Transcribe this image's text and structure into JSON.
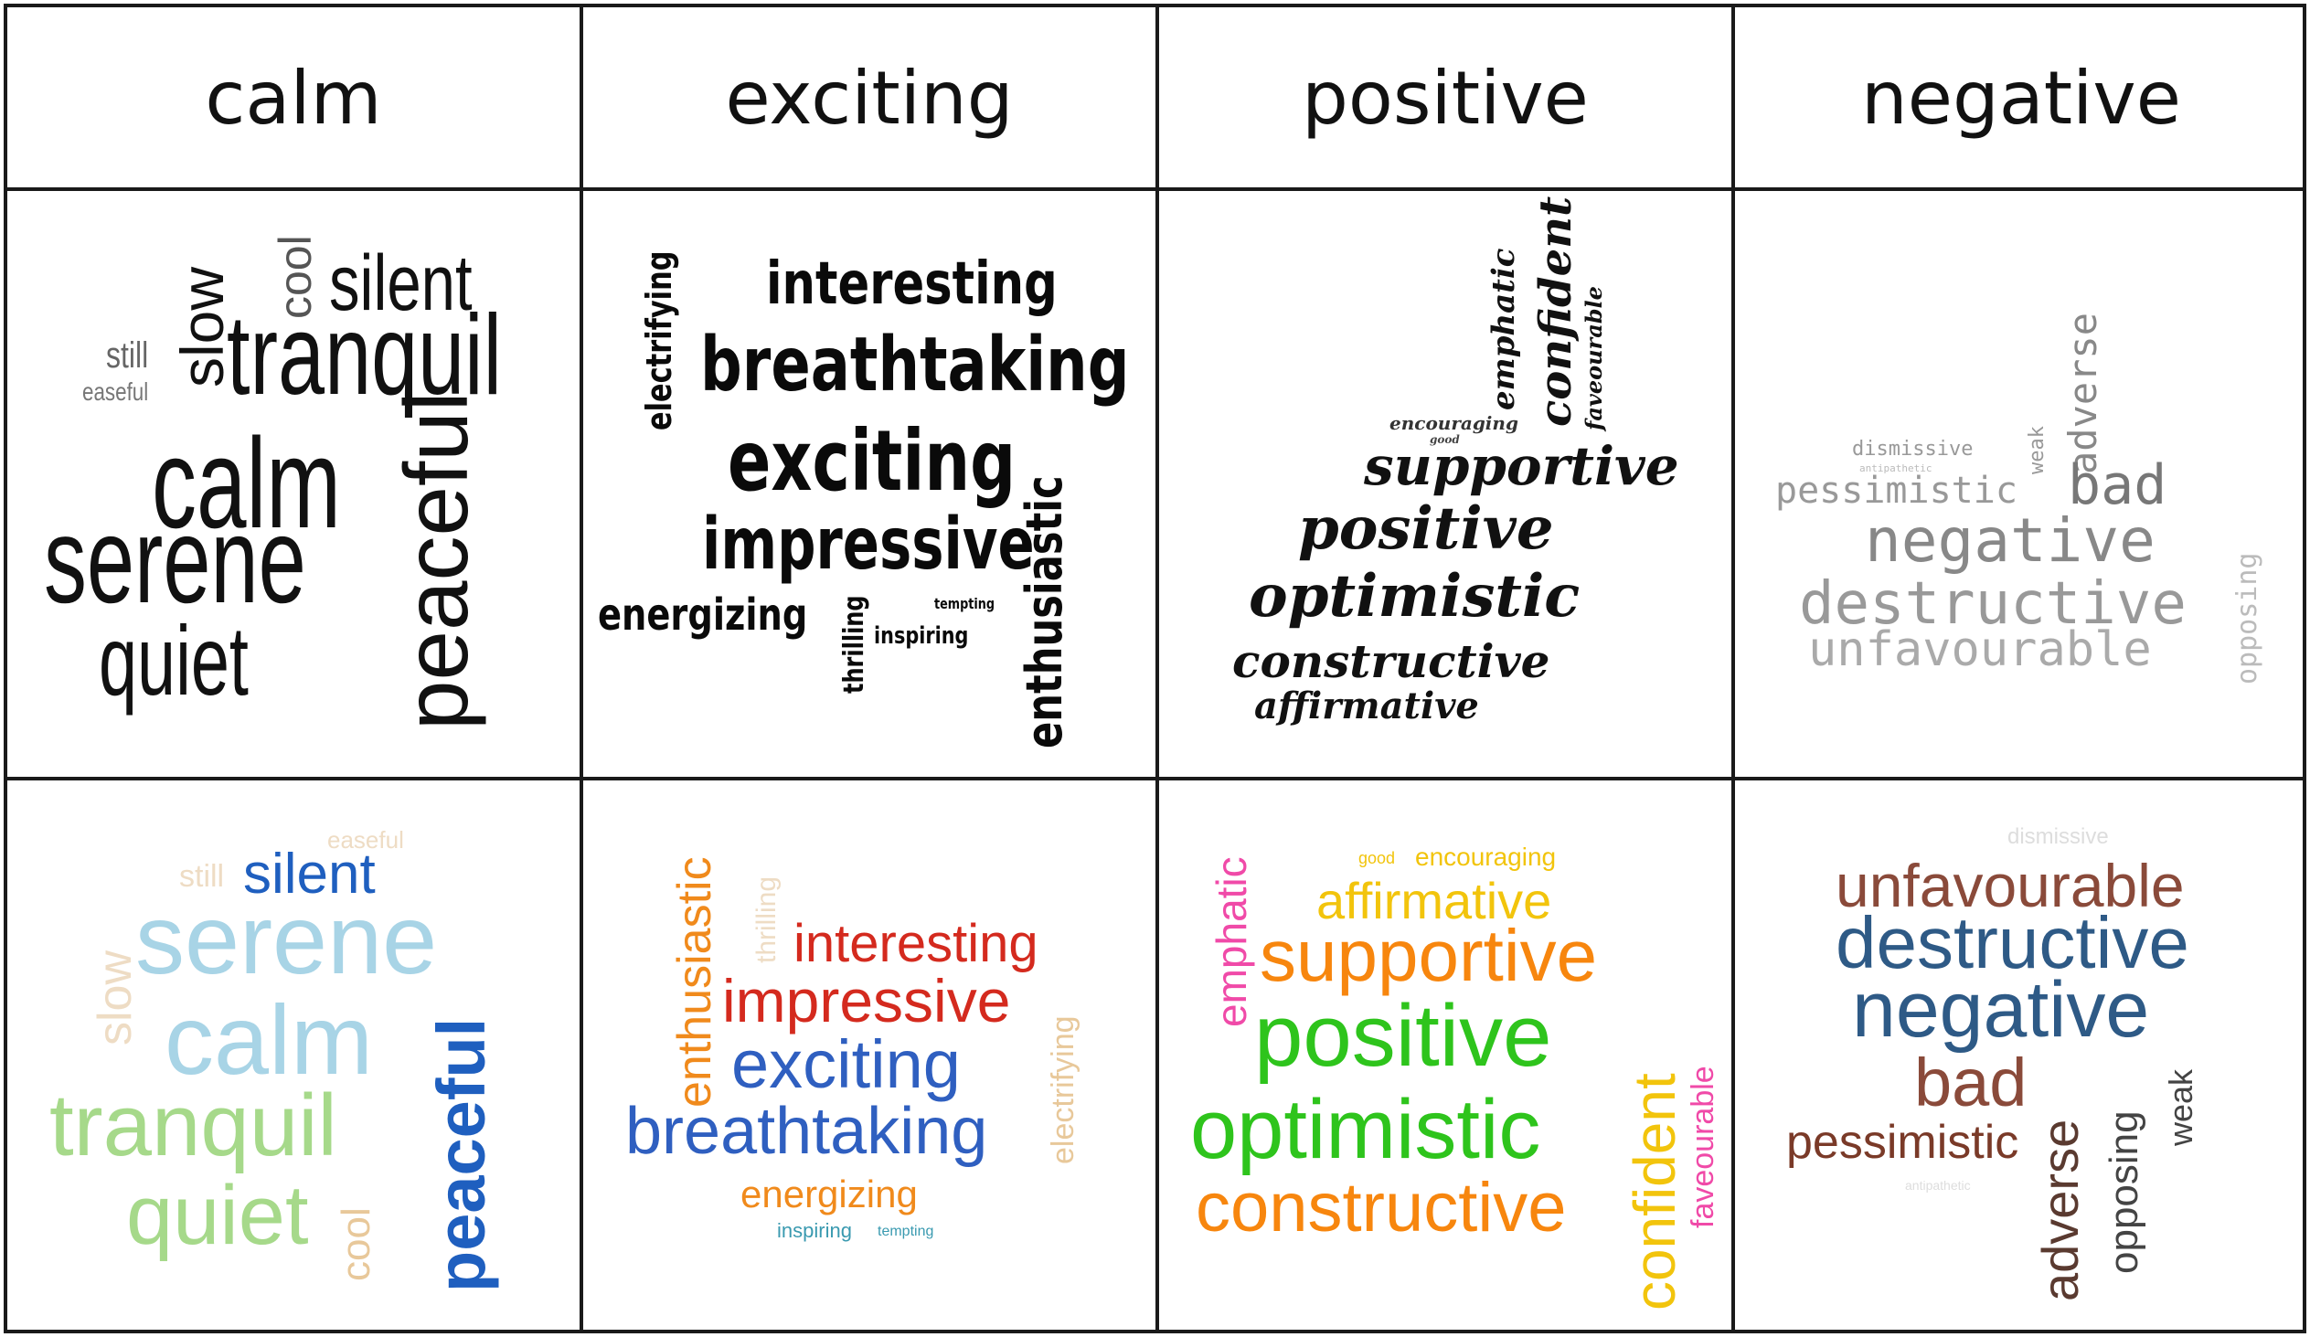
{
  "headers": [
    "calm",
    "exciting",
    "positive",
    "negative"
  ],
  "bw": {
    "calm": [
      "silent",
      "cool",
      "slow",
      "still",
      "easeful",
      "tranquil",
      "calm",
      "serene",
      "quiet",
      "peaceful"
    ],
    "exciting": [
      "electrifying",
      "interesting",
      "breathtaking",
      "exciting",
      "impressive",
      "enthusiastic",
      "energizing",
      "thrilling",
      "inspiring",
      "tempting"
    ],
    "positive": [
      "emphatic",
      "confident",
      "faveourable",
      "encouraging",
      "good",
      "supportive",
      "positive",
      "optimistic",
      "constructive",
      "affirmative"
    ],
    "negative": [
      "adverse",
      "weak",
      "dismissive",
      "antipathetic",
      "pessimistic",
      "bad",
      "negative",
      "destructive",
      "unfavourable",
      "opposing"
    ]
  },
  "color": {
    "calm": [
      "easeful",
      "still",
      "silent",
      "serene",
      "slow",
      "calm",
      "tranquil",
      "peaceful",
      "quiet",
      "cool"
    ],
    "exciting": [
      "enthusiastic",
      "thrilling",
      "interesting",
      "impressive",
      "electrifying",
      "exciting",
      "breathtaking",
      "energizing",
      "inspiring",
      "tempting"
    ],
    "positive": [
      "good",
      "encouraging",
      "affirmative",
      "emphatic",
      "supportive",
      "positive",
      "optimistic",
      "confident",
      "faveourable",
      "constructive"
    ],
    "negative": [
      "dismissive",
      "unfavourable",
      "destructive",
      "negative",
      "bad",
      "pessimistic",
      "adverse",
      "opposing",
      "weak",
      "antipathetic"
    ]
  },
  "palette": {
    "calm_blue": "#1f5fbf",
    "calm_light": "#a8d4e6",
    "calm_green": "#a6d98a",
    "calm_tan": "#e8c89a",
    "excite_orange": "#f08a1c",
    "excite_red": "#d42a1e",
    "excite_blue": "#2f5fc0",
    "excite_teal": "#3a9ab0",
    "pos_pink": "#f04aa8",
    "pos_yellow": "#f2c40c",
    "pos_orange": "#f7860e",
    "pos_green": "#2ec41c",
    "neg_brown": "#8a4a3a",
    "neg_blue": "#2e5a86",
    "neg_dark": "#5a3a30"
  }
}
